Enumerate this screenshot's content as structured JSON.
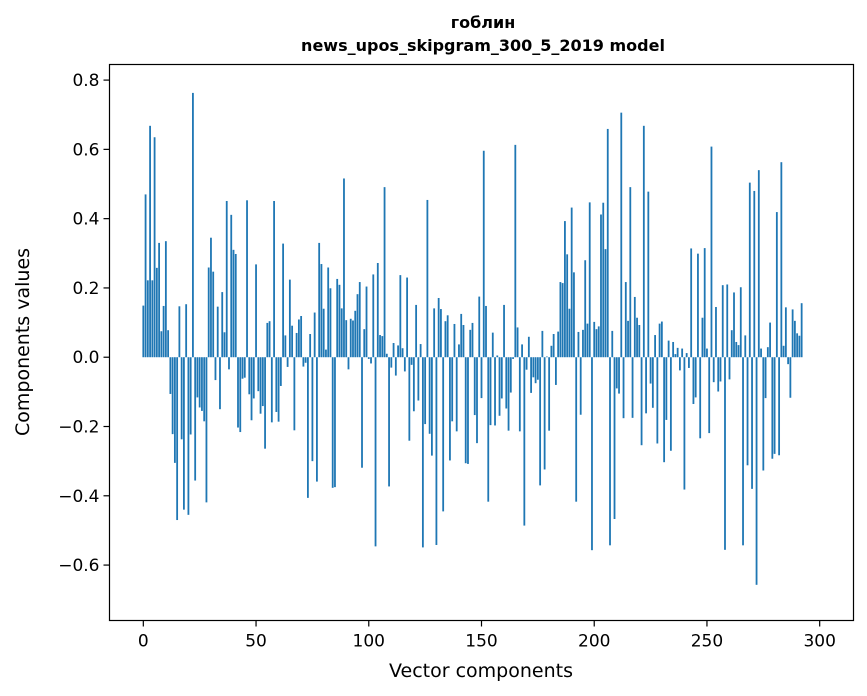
{
  "chart_data": {
    "type": "bar",
    "title_line1": "гоблин",
    "title_line2": "news_upos_skipgram_300_5_2019 model",
    "xlabel": "Vector components",
    "ylabel": "Components values",
    "xlim": [
      -15,
      315
    ],
    "ylim": [
      -0.76,
      0.845
    ],
    "xticks": [
      0,
      50,
      100,
      150,
      200,
      250,
      300
    ],
    "xtick_labels": [
      "0",
      "50",
      "100",
      "150",
      "200",
      "250",
      "300"
    ],
    "yticks": [
      -0.6,
      -0.4,
      -0.2,
      0.0,
      0.2,
      0.4,
      0.6,
      0.8
    ],
    "ytick_labels": [
      "−0.6",
      "−0.4",
      "−0.2",
      "0.0",
      "0.2",
      "0.4",
      "0.6",
      "0.8"
    ],
    "bar_color": "#1f77b4",
    "values": [
      0.149,
      0.47,
      0.222,
      0.668,
      0.222,
      0.635,
      0.258,
      0.33,
      0.075,
      0.148,
      0.335,
      0.078,
      -0.106,
      -0.222,
      -0.305,
      -0.47,
      0.147,
      -0.237,
      -0.44,
      0.153,
      -0.455,
      -0.223,
      0.763,
      -0.356,
      -0.116,
      -0.145,
      -0.155,
      -0.185,
      -0.419,
      0.259,
      0.345,
      0.247,
      -0.066,
      0.146,
      -0.15,
      0.188,
      0.072,
      0.451,
      -0.035,
      0.411,
      0.31,
      0.298,
      -0.203,
      -0.216,
      -0.062,
      -0.059,
      0.453,
      -0.107,
      -0.182,
      -0.119,
      0.268,
      -0.098,
      -0.163,
      -0.141,
      -0.264,
      0.099,
      0.104,
      -0.188,
      0.451,
      -0.158,
      -0.186,
      -0.083,
      0.328,
      0.063,
      -0.028,
      0.224,
      0.091,
      -0.211,
      0.07,
      0.109,
      0.119,
      -0.027,
      -0.016,
      -0.406,
      0.067,
      -0.3,
      0.129,
      -0.359,
      0.33,
      0.269,
      0.14,
      0.022,
      0.259,
      0.199,
      -0.377,
      -0.375,
      0.226,
      0.209,
      0.141,
      0.516,
      0.107,
      -0.035,
      0.111,
      0.106,
      0.134,
      0.182,
      0.217,
      -0.319,
      0.081,
      0.204,
      -0.005,
      -0.018,
      0.239,
      -0.546,
      0.272,
      0.064,
      0.061,
      0.491,
      0.01,
      -0.373,
      -0.03,
      0.041,
      -0.053,
      0.034,
      0.237,
      0.026,
      -0.041,
      0.23,
      -0.241,
      -0.022,
      -0.156,
      0.151,
      -0.125,
      0.038,
      -0.549,
      -0.193,
      0.454,
      -0.221,
      -0.284,
      0.141,
      -0.542,
      0.171,
      0.139,
      -0.445,
      0.104,
      0.121,
      -0.298,
      -0.185,
      0.096,
      -0.214,
      0.037,
      0.125,
      0.093,
      -0.306,
      -0.308,
      0.079,
      0.099,
      -0.167,
      -0.248,
      0.175,
      -0.118,
      0.596,
      0.148,
      -0.417,
      -0.196,
      0.071,
      -0.197,
      0.005,
      -0.169,
      -0.119,
      0.151,
      -0.148,
      -0.212,
      -0.102,
      -0.005,
      0.613,
      0.086,
      -0.214,
      0.037,
      -0.486,
      -0.036,
      0.059,
      -0.103,
      -0.058,
      -0.075,
      -0.065,
      -0.37,
      0.076,
      -0.324,
      0.002,
      -0.212,
      0.033,
      0.067,
      -0.08,
      0.074,
      0.217,
      0.214,
      0.393,
      0.297,
      0.14,
      0.432,
      0.245,
      -0.417,
      0.073,
      -0.166,
      0.079,
      0.28,
      0.097,
      0.447,
      -0.557,
      0.102,
      0.081,
      0.089,
      0.412,
      0.446,
      0.312,
      0.659,
      -0.543,
      0.076,
      -0.467,
      -0.09,
      -0.105,
      0.706,
      -0.176,
      0.217,
      0.105,
      0.491,
      -0.175,
      0.174,
      0.114,
      0.093,
      -0.254,
      0.668,
      -0.162,
      0.478,
      -0.076,
      -0.146,
      0.064,
      -0.249,
      0.097,
      0.103,
      -0.303,
      -0.181,
      0.048,
      -0.27,
      0.044,
      0.009,
      0.027,
      -0.038,
      0.025,
      -0.382,
      0.012,
      -0.031,
      0.314,
      -0.135,
      -0.116,
      0.299,
      -0.234,
      0.114,
      0.315,
      0.025,
      -0.219,
      0.608,
      -0.072,
      0.145,
      -0.099,
      -0.07,
      0.208,
      -0.556,
      0.21,
      -0.064,
      0.078,
      0.187,
      0.044,
      0.035,
      0.202,
      -0.543,
      0.063,
      -0.312,
      0.504,
      -0.38,
      0.48,
      -0.657,
      0.54,
      0.025,
      -0.327,
      -0.118,
      0.029,
      0.1,
      -0.293,
      -0.279,
      0.419,
      -0.283,
      0.563,
      0.033,
      0.144,
      -0.02,
      -0.117,
      0.138,
      0.105,
      0.069,
      0.062,
      0.156
    ]
  }
}
